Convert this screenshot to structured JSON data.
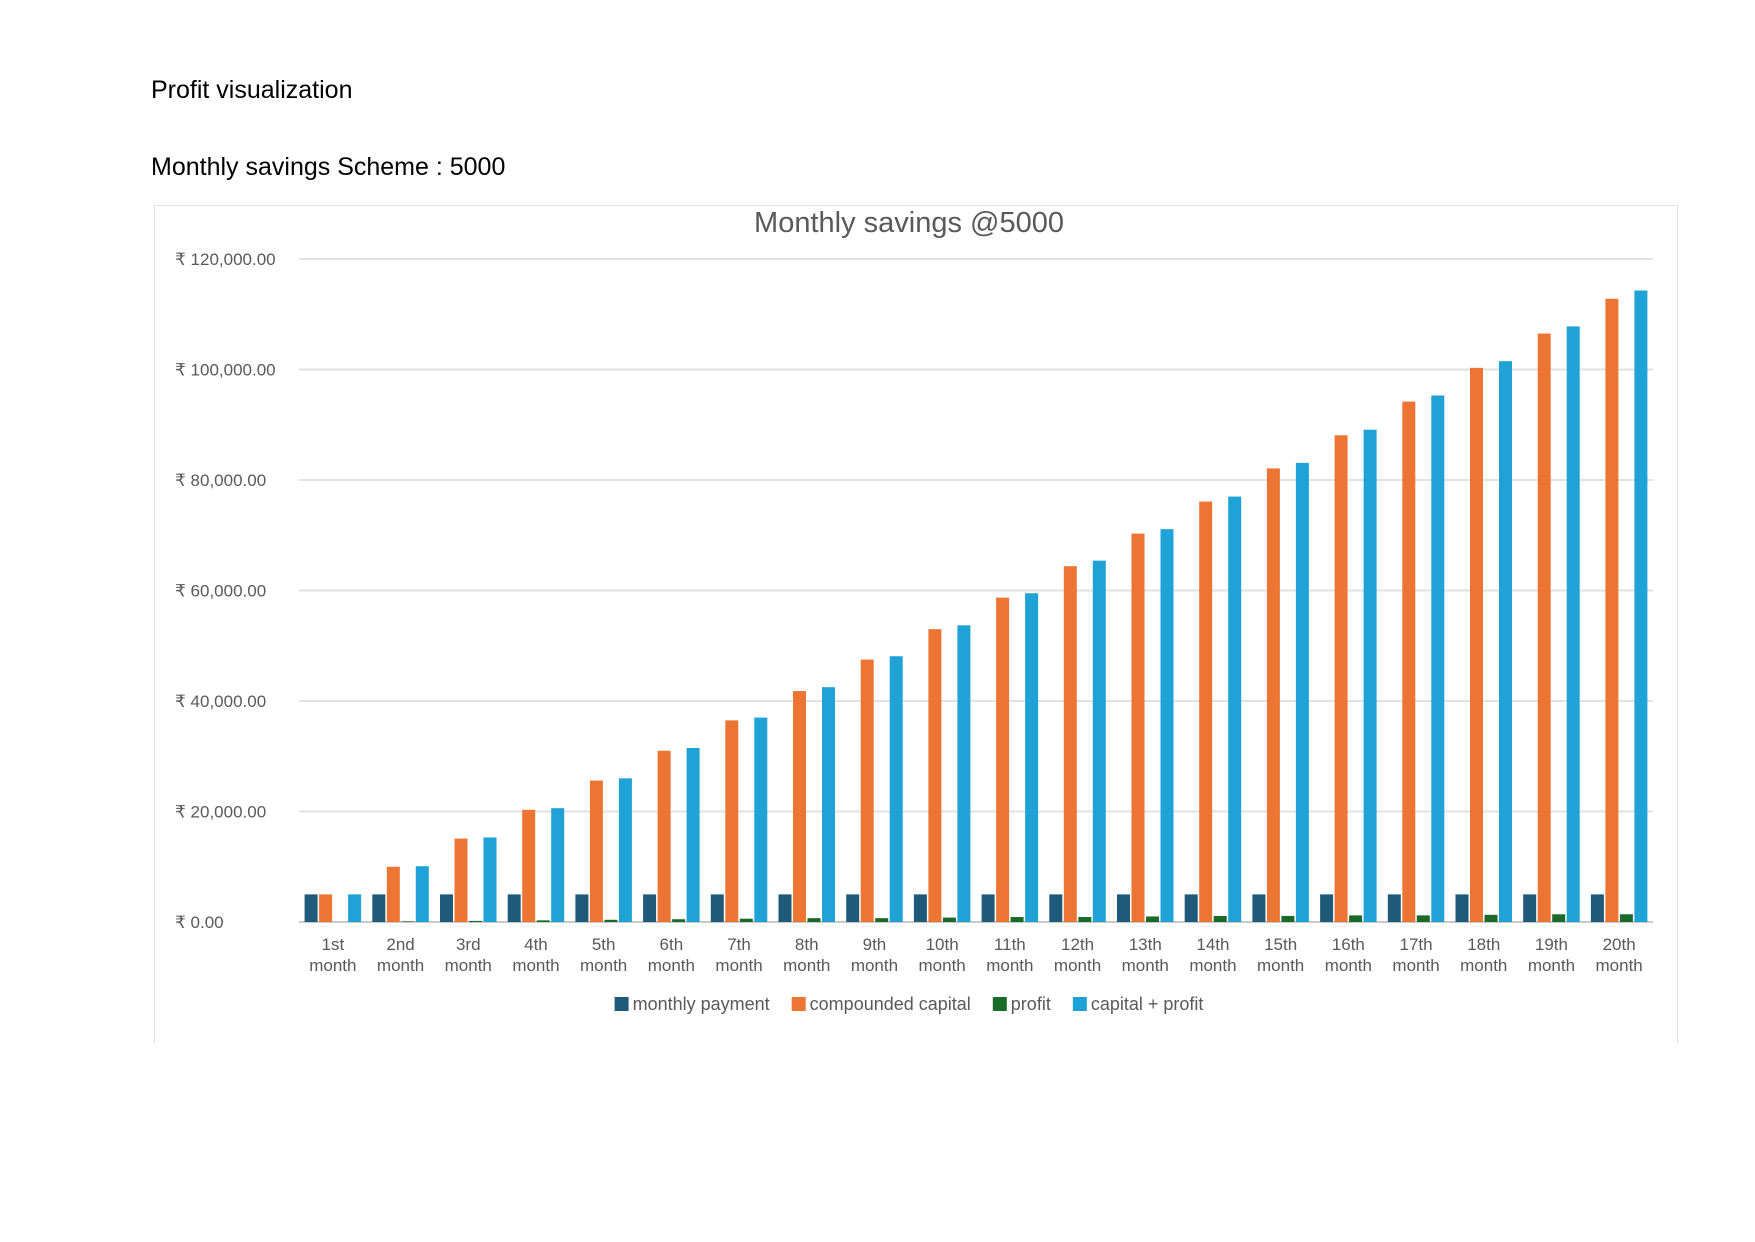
{
  "page": {
    "heading": "Profit visualization",
    "subheading": "Monthly savings Scheme : 5000"
  },
  "chart_data": {
    "type": "bar",
    "title": "Monthly savings @5000",
    "xlabel": "",
    "ylabel": "",
    "ylim": [
      0,
      120000
    ],
    "yticks": [
      0,
      20000,
      40000,
      60000,
      80000,
      100000,
      120000
    ],
    "ytick_labels": [
      "₹ 0.00",
      "₹ 20,000.00",
      "₹ 40,000.00",
      "₹ 60,000.00",
      "₹ 80,000.00",
      "₹ 100,000.00",
      "₹ 120,000.00"
    ],
    "grid": true,
    "legend_position": "bottom",
    "categories": [
      [
        "1st",
        "month"
      ],
      [
        "2nd",
        "month"
      ],
      [
        "3rd",
        "month"
      ],
      [
        "4th",
        "month"
      ],
      [
        "5th",
        "month"
      ],
      [
        "6th",
        "month"
      ],
      [
        "7th",
        "month"
      ],
      [
        "8th",
        "month"
      ],
      [
        "9th",
        "month"
      ],
      [
        "10th",
        "month"
      ],
      [
        "11th",
        "month"
      ],
      [
        "12th",
        "month"
      ],
      [
        "13th",
        "month"
      ],
      [
        "14th",
        "month"
      ],
      [
        "15th",
        "month"
      ],
      [
        "16th",
        "month"
      ],
      [
        "17th",
        "month"
      ],
      [
        "18th",
        "month"
      ],
      [
        "19th",
        "month"
      ],
      [
        "20th",
        "month"
      ]
    ],
    "series": [
      {
        "name": "monthly payment",
        "color": "#1f5a7a",
        "values": [
          5000,
          5000,
          5000,
          5000,
          5000,
          5000,
          5000,
          5000,
          5000,
          5000,
          5000,
          5000,
          5000,
          5000,
          5000,
          5000,
          5000,
          5000,
          5000,
          5000
        ]
      },
      {
        "name": "compounded capital",
        "color": "#ed7534",
        "values": [
          5000,
          10000,
          15100,
          20300,
          25600,
          31000,
          36500,
          41800,
          47500,
          53000,
          58700,
          64400,
          70300,
          76100,
          82100,
          88100,
          94200,
          100300,
          106500,
          112800
        ]
      },
      {
        "name": "profit",
        "color": "#1a6b29",
        "values": [
          0,
          100,
          200,
          300,
          400,
          500,
          600,
          700,
          700,
          800,
          900,
          900,
          1000,
          1100,
          1100,
          1200,
          1200,
          1300,
          1400,
          1400
        ]
      },
      {
        "name": "capital + profit",
        "color": "#1fa2d6",
        "values": [
          5000,
          10100,
          15300,
          20600,
          26000,
          31500,
          37000,
          42500,
          48100,
          53700,
          59500,
          65400,
          71100,
          77000,
          83100,
          89100,
          95300,
          101500,
          107800,
          114300
        ]
      }
    ]
  }
}
